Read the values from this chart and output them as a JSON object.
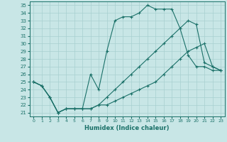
{
  "xlabel": "Humidex (Indice chaleur)",
  "background_color": "#c8e6e6",
  "grid_color": "#a8d0d0",
  "line_color": "#1a7068",
  "xlim": [
    -0.5,
    23.5
  ],
  "ylim": [
    20.5,
    35.5
  ],
  "xticks": [
    0,
    1,
    2,
    3,
    4,
    5,
    6,
    7,
    8,
    9,
    10,
    11,
    12,
    13,
    14,
    15,
    16,
    17,
    18,
    19,
    20,
    21,
    22,
    23
  ],
  "yticks": [
    21,
    22,
    23,
    24,
    25,
    26,
    27,
    28,
    29,
    30,
    31,
    32,
    33,
    34,
    35
  ],
  "line1_x": [
    0,
    1,
    2,
    3,
    4,
    5,
    6,
    7,
    8,
    9,
    10,
    11,
    12,
    13,
    14,
    15,
    16,
    17,
    18,
    19,
    20,
    21,
    22,
    23
  ],
  "line1_y": [
    25.0,
    24.5,
    23.0,
    21.0,
    21.5,
    21.5,
    21.5,
    26.0,
    24.0,
    29.0,
    33.0,
    33.5,
    33.5,
    34.0,
    35.0,
    34.5,
    34.5,
    34.5,
    32.0,
    28.5,
    27.0,
    27.0,
    26.5,
    26.5
  ],
  "line2_x": [
    0,
    1,
    2,
    3,
    4,
    5,
    6,
    7,
    8,
    9,
    10,
    11,
    12,
    13,
    14,
    15,
    16,
    17,
    18,
    19,
    20,
    21,
    22,
    23
  ],
  "line2_y": [
    25.0,
    24.5,
    23.0,
    21.0,
    21.5,
    21.5,
    21.5,
    21.5,
    22.0,
    23.0,
    24.0,
    25.0,
    26.0,
    27.0,
    28.0,
    29.0,
    30.0,
    31.0,
    32.0,
    33.0,
    32.5,
    27.5,
    27.0,
    26.5
  ],
  "line3_x": [
    0,
    1,
    2,
    3,
    4,
    5,
    6,
    7,
    8,
    9,
    10,
    11,
    12,
    13,
    14,
    15,
    16,
    17,
    18,
    19,
    20,
    21,
    22,
    23
  ],
  "line3_y": [
    25.0,
    24.5,
    23.0,
    21.0,
    21.5,
    21.5,
    21.5,
    21.5,
    22.0,
    22.0,
    22.5,
    23.0,
    23.5,
    24.0,
    24.5,
    25.0,
    26.0,
    27.0,
    28.0,
    29.0,
    29.5,
    30.0,
    27.0,
    26.5
  ]
}
